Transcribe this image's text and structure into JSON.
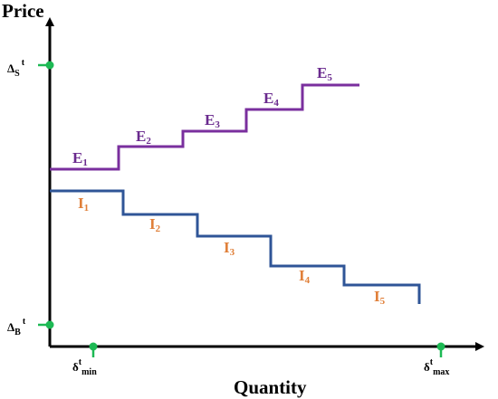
{
  "axes": {
    "y_title": "Price",
    "x_title": "Quantity"
  },
  "y_markers": [
    {
      "id": "delta-s",
      "main": "Δ",
      "sub": "S",
      "sup": "t"
    },
    {
      "id": "delta-b",
      "main": "Δ",
      "sub": "B",
      "sup": "t"
    }
  ],
  "x_markers": [
    {
      "id": "delta-min",
      "main": "δ",
      "sup": "t",
      "sub": "min"
    },
    {
      "id": "delta-max",
      "main": "δ",
      "sup": "t",
      "sub": "max"
    }
  ],
  "marker_color": "#1db954",
  "curves": [
    {
      "id": "export",
      "color": "#7a2f9e",
      "label_color": "#6a2a8e",
      "steps": [
        {
          "letter": "E",
          "index": "1"
        },
        {
          "letter": "E",
          "index": "2"
        },
        {
          "letter": "E",
          "index": "3"
        },
        {
          "letter": "E",
          "index": "4"
        },
        {
          "letter": "E",
          "index": "5"
        }
      ]
    },
    {
      "id": "import",
      "color": "#2f5597",
      "label_color": "#e0803a",
      "steps": [
        {
          "letter": "I",
          "index": "1"
        },
        {
          "letter": "I",
          "index": "2"
        },
        {
          "letter": "I",
          "index": "3"
        },
        {
          "letter": "I",
          "index": "4"
        },
        {
          "letter": "I",
          "index": "5"
        }
      ]
    }
  ]
}
